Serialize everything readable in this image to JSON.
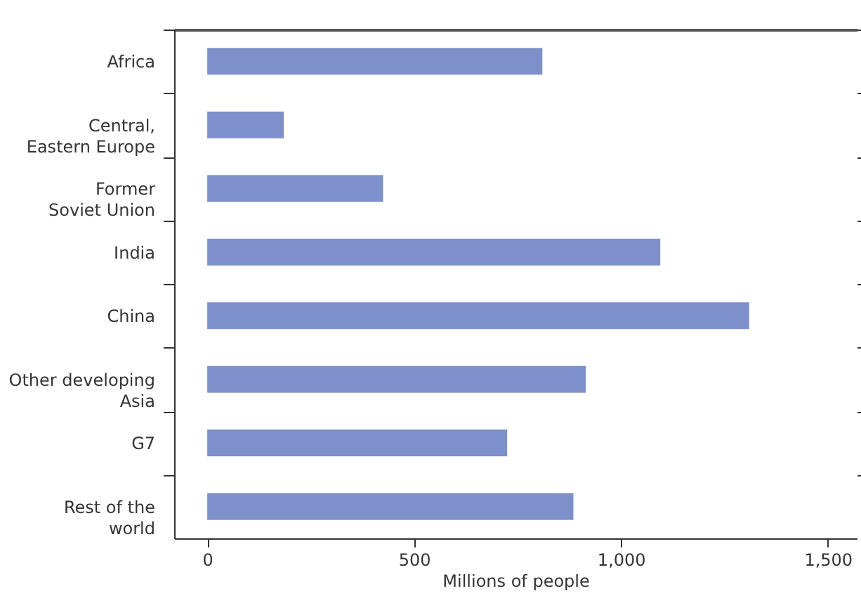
{
  "chart_data": {
    "type": "bar",
    "orientation": "horizontal",
    "xlabel": "Millions of people",
    "categories": [
      "Africa",
      "Central,\nEastern Europe",
      "Former\nSoviet Union",
      "India",
      "China",
      "Other developing\nAsia",
      "G7",
      "Rest of the\nworld"
    ],
    "values": [
      810,
      185,
      425,
      1095,
      1310,
      915,
      725,
      885
    ],
    "color": "#7d90c9",
    "xlim": [
      -80,
      1570
    ],
    "xticks": [
      0,
      {
        "value": 500,
        "label": "500"
      },
      {
        "value": 1000,
        "label": "1,000"
      },
      {
        "value": 1500,
        "label": "1,500"
      }
    ],
    "grid": false
  }
}
